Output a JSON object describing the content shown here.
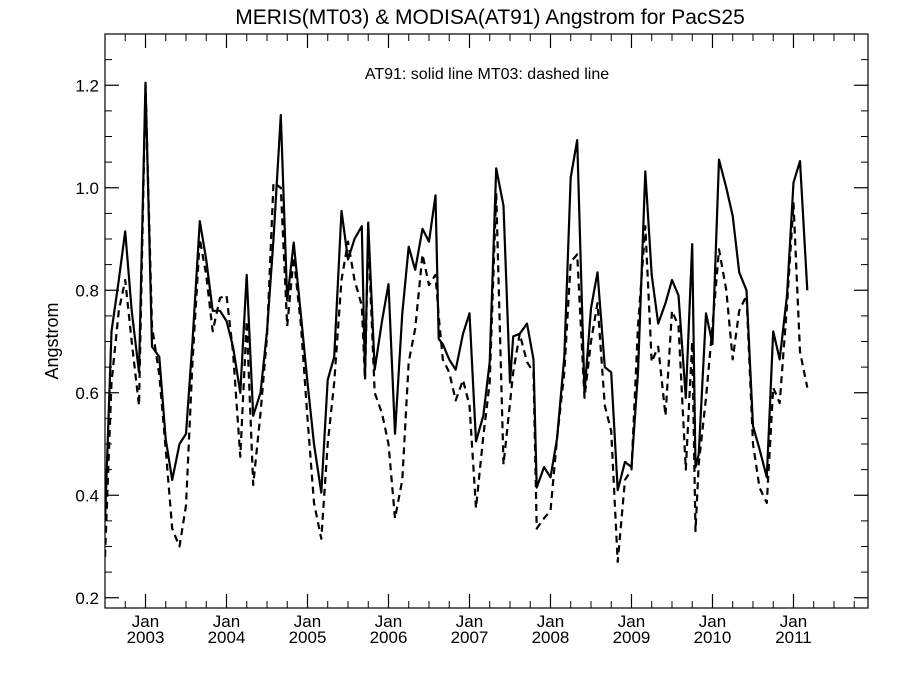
{
  "chart_data": {
    "type": "line",
    "title": "MERIS(MT03) & MODISA(AT91)  Angstrom for PacS25",
    "annotation": "AT91: solid line   MT03: dashed line",
    "ylabel": "Angstrom",
    "xlabel": "",
    "ylim": [
      0.18,
      1.3
    ],
    "xlim": [
      2002.5,
      2011.92
    ],
    "yticks": [
      0.2,
      0.4,
      0.6,
      0.8,
      1.0,
      1.2
    ],
    "ytick_labels": [
      "0.2",
      "0.4",
      "0.6",
      "0.8",
      "1.0",
      "1.2"
    ],
    "xticks": [
      {
        "x": 2003.0,
        "month": "Jan",
        "year": "2003"
      },
      {
        "x": 2004.0,
        "month": "Jan",
        "year": "2004"
      },
      {
        "x": 2005.0,
        "month": "Jan",
        "year": "2005"
      },
      {
        "x": 2006.0,
        "month": "Jan",
        "year": "2006"
      },
      {
        "x": 2007.0,
        "month": "Jan",
        "year": "2007"
      },
      {
        "x": 2008.0,
        "month": "Jan",
        "year": "2008"
      },
      {
        "x": 2009.0,
        "month": "Jan",
        "year": "2009"
      },
      {
        "x": 2010.0,
        "month": "Jan",
        "year": "2010"
      },
      {
        "x": 2011.0,
        "month": "Jan",
        "year": "2011"
      }
    ],
    "grid": false,
    "series": [
      {
        "name": "AT91",
        "style": "solid",
        "color": "#000000",
        "points": [
          [
            2002.5,
            0.35
          ],
          [
            2002.58,
            0.72
          ],
          [
            2002.67,
            0.82
          ],
          [
            2002.75,
            0.915
          ],
          [
            2002.83,
            0.76
          ],
          [
            2002.92,
            0.64
          ],
          [
            2003.0,
            1.205
          ],
          [
            2003.08,
            0.69
          ],
          [
            2003.17,
            0.67
          ],
          [
            2003.25,
            0.51
          ],
          [
            2003.33,
            0.43
          ],
          [
            2003.42,
            0.5
          ],
          [
            2003.5,
            0.52
          ],
          [
            2003.58,
            0.7
          ],
          [
            2003.67,
            0.935
          ],
          [
            2003.75,
            0.86
          ],
          [
            2003.83,
            0.76
          ],
          [
            2003.92,
            0.76
          ],
          [
            2004.0,
            0.74
          ],
          [
            2004.08,
            0.69
          ],
          [
            2004.17,
            0.6
          ],
          [
            2004.25,
            0.83
          ],
          [
            2004.33,
            0.555
          ],
          [
            2004.42,
            0.6
          ],
          [
            2004.5,
            0.72
          ],
          [
            2004.58,
            0.9
          ],
          [
            2004.67,
            1.142
          ],
          [
            2004.75,
            0.78
          ],
          [
            2004.83,
            0.893
          ],
          [
            2004.92,
            0.75
          ],
          [
            2005.0,
            0.62
          ],
          [
            2005.08,
            0.5
          ],
          [
            2005.17,
            0.405
          ],
          [
            2005.25,
            0.625
          ],
          [
            2005.33,
            0.67
          ],
          [
            2005.42,
            0.955
          ],
          [
            2005.5,
            0.86
          ],
          [
            2005.58,
            0.9
          ],
          [
            2005.67,
            0.925
          ],
          [
            2005.71,
            0.63
          ],
          [
            2005.75,
            0.932
          ],
          [
            2005.83,
            0.645
          ],
          [
            2005.92,
            0.74
          ],
          [
            2006.0,
            0.812
          ],
          [
            2006.08,
            0.52
          ],
          [
            2006.17,
            0.755
          ],
          [
            2006.25,
            0.885
          ],
          [
            2006.33,
            0.84
          ],
          [
            2006.42,
            0.92
          ],
          [
            2006.5,
            0.895
          ],
          [
            2006.58,
            0.985
          ],
          [
            2006.62,
            0.705
          ],
          [
            2006.67,
            0.695
          ],
          [
            2006.75,
            0.665
          ],
          [
            2006.83,
            0.645
          ],
          [
            2006.92,
            0.715
          ],
          [
            2007.0,
            0.755
          ],
          [
            2007.08,
            0.505
          ],
          [
            2007.17,
            0.555
          ],
          [
            2007.25,
            0.66
          ],
          [
            2007.33,
            1.038
          ],
          [
            2007.42,
            0.965
          ],
          [
            2007.5,
            0.62
          ],
          [
            2007.54,
            0.71
          ],
          [
            2007.62,
            0.715
          ],
          [
            2007.71,
            0.735
          ],
          [
            2007.79,
            0.665
          ],
          [
            2007.83,
            0.415
          ],
          [
            2007.92,
            0.455
          ],
          [
            2008.0,
            0.435
          ],
          [
            2008.08,
            0.51
          ],
          [
            2008.17,
            0.67
          ],
          [
            2008.25,
            1.02
          ],
          [
            2008.33,
            1.093
          ],
          [
            2008.42,
            0.6
          ],
          [
            2008.5,
            0.765
          ],
          [
            2008.58,
            0.835
          ],
          [
            2008.67,
            0.65
          ],
          [
            2008.75,
            0.64
          ],
          [
            2008.83,
            0.41
          ],
          [
            2008.92,
            0.465
          ],
          [
            2009.0,
            0.455
          ],
          [
            2009.08,
            0.64
          ],
          [
            2009.17,
            1.032
          ],
          [
            2009.25,
            0.83
          ],
          [
            2009.33,
            0.735
          ],
          [
            2009.42,
            0.775
          ],
          [
            2009.5,
            0.82
          ],
          [
            2009.58,
            0.79
          ],
          [
            2009.67,
            0.59
          ],
          [
            2009.75,
            0.89
          ],
          [
            2009.79,
            0.455
          ],
          [
            2009.83,
            0.48
          ],
          [
            2009.92,
            0.755
          ],
          [
            2010.0,
            0.695
          ],
          [
            2010.08,
            1.055
          ],
          [
            2010.17,
            1.0
          ],
          [
            2010.25,
            0.945
          ],
          [
            2010.33,
            0.835
          ],
          [
            2010.42,
            0.8
          ],
          [
            2010.5,
            0.535
          ],
          [
            2010.58,
            0.49
          ],
          [
            2010.67,
            0.435
          ],
          [
            2010.75,
            0.72
          ],
          [
            2010.83,
            0.665
          ],
          [
            2010.92,
            0.79
          ],
          [
            2011.0,
            1.01
          ],
          [
            2011.08,
            1.052
          ],
          [
            2011.17,
            0.8
          ]
        ]
      },
      {
        "name": "MT03",
        "style": "dashed",
        "color": "#000000",
        "points": [
          [
            2002.5,
            0.28
          ],
          [
            2002.58,
            0.62
          ],
          [
            2002.67,
            0.76
          ],
          [
            2002.75,
            0.82
          ],
          [
            2002.83,
            0.7
          ],
          [
            2002.92,
            0.575
          ],
          [
            2003.0,
            1.2
          ],
          [
            2003.08,
            0.73
          ],
          [
            2003.17,
            0.635
          ],
          [
            2003.25,
            0.49
          ],
          [
            2003.33,
            0.335
          ],
          [
            2003.42,
            0.3
          ],
          [
            2003.5,
            0.38
          ],
          [
            2003.58,
            0.66
          ],
          [
            2003.67,
            0.9
          ],
          [
            2003.75,
            0.83
          ],
          [
            2003.83,
            0.72
          ],
          [
            2003.92,
            0.785
          ],
          [
            2004.0,
            0.79
          ],
          [
            2004.08,
            0.68
          ],
          [
            2004.17,
            0.475
          ],
          [
            2004.25,
            0.74
          ],
          [
            2004.33,
            0.42
          ],
          [
            2004.42,
            0.56
          ],
          [
            2004.5,
            0.71
          ],
          [
            2004.58,
            1.01
          ],
          [
            2004.67,
            1.0
          ],
          [
            2004.75,
            0.73
          ],
          [
            2004.83,
            0.865
          ],
          [
            2004.92,
            0.73
          ],
          [
            2005.0,
            0.55
          ],
          [
            2005.08,
            0.385
          ],
          [
            2005.17,
            0.315
          ],
          [
            2005.25,
            0.5
          ],
          [
            2005.33,
            0.62
          ],
          [
            2005.42,
            0.82
          ],
          [
            2005.5,
            0.895
          ],
          [
            2005.58,
            0.82
          ],
          [
            2005.67,
            0.77
          ],
          [
            2005.71,
            0.625
          ],
          [
            2005.75,
            0.905
          ],
          [
            2005.83,
            0.6
          ],
          [
            2005.92,
            0.56
          ],
          [
            2006.0,
            0.5
          ],
          [
            2006.08,
            0.355
          ],
          [
            2006.17,
            0.43
          ],
          [
            2006.25,
            0.66
          ],
          [
            2006.33,
            0.725
          ],
          [
            2006.42,
            0.87
          ],
          [
            2006.5,
            0.81
          ],
          [
            2006.58,
            0.83
          ],
          [
            2006.62,
            0.75
          ],
          [
            2006.67,
            0.665
          ],
          [
            2006.75,
            0.64
          ],
          [
            2006.83,
            0.585
          ],
          [
            2006.92,
            0.625
          ],
          [
            2007.0,
            0.575
          ],
          [
            2007.08,
            0.375
          ],
          [
            2007.17,
            0.515
          ],
          [
            2007.25,
            0.62
          ],
          [
            2007.33,
            0.99
          ],
          [
            2007.42,
            0.46
          ],
          [
            2007.5,
            0.58
          ],
          [
            2007.54,
            0.64
          ],
          [
            2007.62,
            0.715
          ],
          [
            2007.71,
            0.66
          ],
          [
            2007.79,
            0.64
          ],
          [
            2007.83,
            0.335
          ],
          [
            2007.92,
            0.355
          ],
          [
            2008.0,
            0.37
          ],
          [
            2008.08,
            0.51
          ],
          [
            2008.17,
            0.64
          ],
          [
            2008.25,
            0.855
          ],
          [
            2008.33,
            0.87
          ],
          [
            2008.42,
            0.59
          ],
          [
            2008.5,
            0.7
          ],
          [
            2008.58,
            0.775
          ],
          [
            2008.67,
            0.575
          ],
          [
            2008.75,
            0.525
          ],
          [
            2008.83,
            0.27
          ],
          [
            2008.92,
            0.43
          ],
          [
            2009.0,
            0.45
          ],
          [
            2009.08,
            0.73
          ],
          [
            2009.17,
            0.925
          ],
          [
            2009.25,
            0.66
          ],
          [
            2009.33,
            0.69
          ],
          [
            2009.42,
            0.555
          ],
          [
            2009.5,
            0.76
          ],
          [
            2009.58,
            0.73
          ],
          [
            2009.67,
            0.45
          ],
          [
            2009.75,
            0.7
          ],
          [
            2009.79,
            0.33
          ],
          [
            2009.83,
            0.46
          ],
          [
            2009.92,
            0.59
          ],
          [
            2010.0,
            0.73
          ],
          [
            2010.08,
            0.88
          ],
          [
            2010.17,
            0.8
          ],
          [
            2010.25,
            0.665
          ],
          [
            2010.33,
            0.76
          ],
          [
            2010.42,
            0.79
          ],
          [
            2010.5,
            0.5
          ],
          [
            2010.58,
            0.415
          ],
          [
            2010.67,
            0.385
          ],
          [
            2010.75,
            0.61
          ],
          [
            2010.83,
            0.58
          ],
          [
            2010.92,
            0.77
          ],
          [
            2011.0,
            0.97
          ],
          [
            2011.08,
            0.68
          ],
          [
            2011.17,
            0.61
          ]
        ]
      }
    ]
  }
}
